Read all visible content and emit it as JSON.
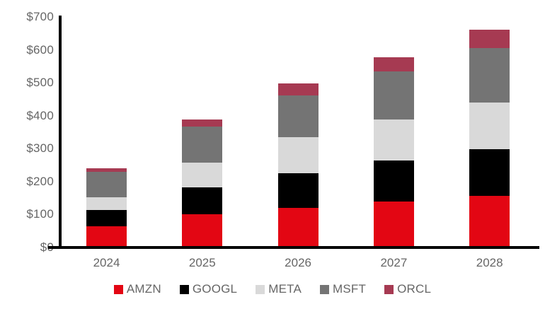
{
  "chart_data": {
    "type": "bar",
    "stacked": true,
    "title": "",
    "categories": [
      "2024",
      "2025",
      "2026",
      "2027",
      "2028"
    ],
    "series": [
      {
        "name": "AMZN",
        "color": "#e30613",
        "values": [
          60,
          97,
          117,
          135,
          153
        ]
      },
      {
        "name": "GOOGL",
        "color": "#000000",
        "values": [
          50,
          82,
          104,
          125,
          141
        ]
      },
      {
        "name": "META",
        "color": "#d9d9d9",
        "values": [
          38,
          74,
          109,
          124,
          143
        ]
      },
      {
        "name": "MSFT",
        "color": "#747474",
        "values": [
          78,
          109,
          127,
          147,
          165
        ]
      },
      {
        "name": "ORCL",
        "color": "#a63a52",
        "values": [
          10,
          22,
          36,
          42,
          55
        ]
      }
    ],
    "y_ticks": [
      "$0",
      "$100",
      "$200",
      "$300",
      "$400",
      "$500",
      "$600",
      "$700"
    ],
    "y_tick_values": [
      0,
      100,
      200,
      300,
      400,
      500,
      600,
      700
    ],
    "ylim": [
      0,
      700
    ],
    "grid": false,
    "legend_position": "bottom",
    "axis_color": "#000000",
    "text_color": "#666666"
  }
}
